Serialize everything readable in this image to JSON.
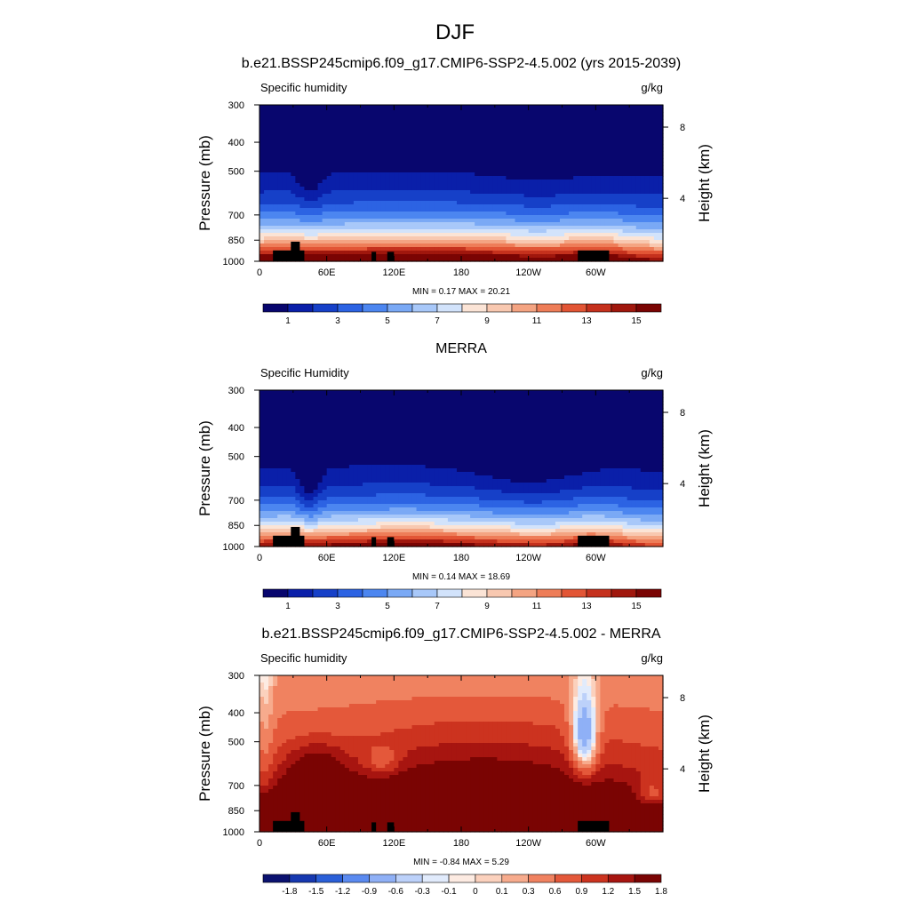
{
  "figure": {
    "title": "DJF"
  },
  "colorbar_colors": {
    "abs": [
      "#08066e",
      "#0a1fa9",
      "#1640c8",
      "#2c63e3",
      "#4c86f0",
      "#7aa9f5",
      "#a8c8f9",
      "#d2e3fb",
      "#fbe4d6",
      "#f8c8b0",
      "#f4a482",
      "#ee7d58",
      "#e25535",
      "#c5311d",
      "#a0170d",
      "#7a0403"
    ],
    "diff": [
      "#0b1270",
      "#1638b0",
      "#2a5fd8",
      "#5a8af0",
      "#8fb0f6",
      "#bcd1fa",
      "#e1ebfc",
      "#fdebe2",
      "#fbd1bd",
      "#f7ab8d",
      "#f08260",
      "#e4583a",
      "#cc331f",
      "#a71510",
      "#7a0403"
    ]
  },
  "chart_data": [
    {
      "type": "heatmap",
      "title": "b.e21.BSSP245cmip6.f09_g17.CMIP6-SSP2-4.5.002 (yrs 2015-2039)",
      "left_label": "Specific humidity",
      "units": "g/kg",
      "ylabel": "Pressure (mb)",
      "y2label": "Height (km)",
      "x_ticks": [
        "0",
        "60E",
        "120E",
        "180",
        "120W",
        "60W"
      ],
      "x_tick_lon": [
        0,
        60,
        120,
        180,
        240,
        300
      ],
      "xlim": [
        0,
        360
      ],
      "y_ticks": [
        "300",
        "400",
        "500",
        "700",
        "850",
        "1000"
      ],
      "y_tick_p": [
        300,
        400,
        500,
        700,
        850,
        1000
      ],
      "ylim": [
        300,
        1000
      ],
      "log_scale_y": true,
      "height_ticks": [
        "8",
        "4"
      ],
      "height_tick_p": [
        356,
        616
      ],
      "stats_text": "MIN =   0.17  MAX =  20.21",
      "min": 0.17,
      "max": 20.21,
      "colorbar_levels": [
        "1",
        "3",
        "5",
        "7",
        "9",
        "11",
        "13",
        "15"
      ],
      "colorbar_scheme": "abs",
      "field": "model"
    },
    {
      "type": "heatmap",
      "title": "MERRA",
      "left_label": "Specific Humidity",
      "units": "g/kg",
      "ylabel": "Pressure (mb)",
      "y2label": "Height (km)",
      "x_ticks": [
        "0",
        "60E",
        "120E",
        "180",
        "120W",
        "60W"
      ],
      "x_tick_lon": [
        0,
        60,
        120,
        180,
        240,
        300
      ],
      "xlim": [
        0,
        360
      ],
      "y_ticks": [
        "300",
        "400",
        "500",
        "700",
        "850",
        "1000"
      ],
      "y_tick_p": [
        300,
        400,
        500,
        700,
        850,
        1000
      ],
      "ylim": [
        300,
        1000
      ],
      "log_scale_y": true,
      "height_ticks": [
        "8",
        "4"
      ],
      "height_tick_p": [
        356,
        616
      ],
      "stats_text": "MIN =   0.14  MAX =  18.69",
      "min": 0.14,
      "max": 18.69,
      "colorbar_levels": [
        "1",
        "3",
        "5",
        "7",
        "9",
        "11",
        "13",
        "15"
      ],
      "colorbar_scheme": "abs",
      "field": "obs"
    },
    {
      "type": "heatmap",
      "title": "b.e21.BSSP245cmip6.f09_g17.CMIP6-SSP2-4.5.002 - MERRA",
      "left_label": "Specific humidity",
      "units": "g/kg",
      "ylabel": "Pressure (mb)",
      "y2label": "Height (km)",
      "x_ticks": [
        "0",
        "60E",
        "120E",
        "180",
        "120W",
        "60W"
      ],
      "x_tick_lon": [
        0,
        60,
        120,
        180,
        240,
        300
      ],
      "xlim": [
        0,
        360
      ],
      "y_ticks": [
        "300",
        "400",
        "500",
        "700",
        "850",
        "1000"
      ],
      "y_tick_p": [
        300,
        400,
        500,
        700,
        850,
        1000
      ],
      "ylim": [
        300,
        1000
      ],
      "log_scale_y": true,
      "height_ticks": [
        "8",
        "4"
      ],
      "height_tick_p": [
        356,
        616
      ],
      "stats_text": "MIN =  -0.84  MAX =   5.29",
      "min": -0.84,
      "max": 5.29,
      "colorbar_levels": [
        "-1.8",
        "-1.5",
        "-1.2",
        "-0.9",
        "-0.6",
        "-0.3",
        "-0.1",
        "0",
        "0.1",
        "0.3",
        "0.6",
        "0.9",
        "1.2",
        "1.5",
        "1.8"
      ],
      "colorbar_scheme": "diff",
      "field": "diff"
    }
  ]
}
